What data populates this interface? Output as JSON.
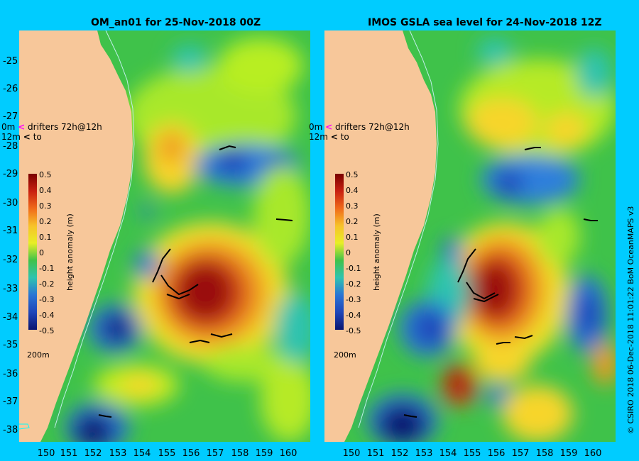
{
  "left_title": "OM_an01 for 25-Nov-2018 00Z",
  "right_title": "IMOS GSLA sea level  for 24-Nov-2018 12Z",
  "lat_labels": [
    "-25",
    "-26",
    "-27",
    "-28",
    "-29",
    "-30",
    "-31",
    "-32",
    "-33",
    "-34",
    "-35",
    "-36",
    "-37",
    "-38"
  ],
  "lon_labels_left": [
    "150",
    "151",
    "152",
    "153",
    "154",
    "155",
    "156",
    "157",
    "158",
    "159",
    "160"
  ],
  "lon_labels_right": [
    "150",
    "151",
    "152",
    "153",
    "154",
    "155",
    "156",
    "157",
    "158",
    "159",
    "160"
  ],
  "drifters": {
    "line1_depth": "0m",
    "line1_text": "drifters 72h@12h",
    "line2_depth": "12m",
    "line2_text": "to"
  },
  "colorbar": {
    "label": "height anomaly (m)",
    "ticks": [
      "0.5",
      "0.4",
      "0.3",
      "0.2",
      "0.1",
      "0",
      "-0.1",
      "-0.2",
      "-0.3",
      "-0.4",
      "-0.5"
    ],
    "range": [
      -0.5,
      0.5
    ]
  },
  "isobath_label": "200m",
  "credit": "© CSIRO 2018   06-Dec-2018 11:01:22 BoM OceanMAPS v3",
  "colors": {
    "background": "#00ccff",
    "land": "#f7c79a",
    "base_ocean": "#3fc24a",
    "drifter_arrow": "#000000",
    "marker_0m": "#ff00ff"
  }
}
